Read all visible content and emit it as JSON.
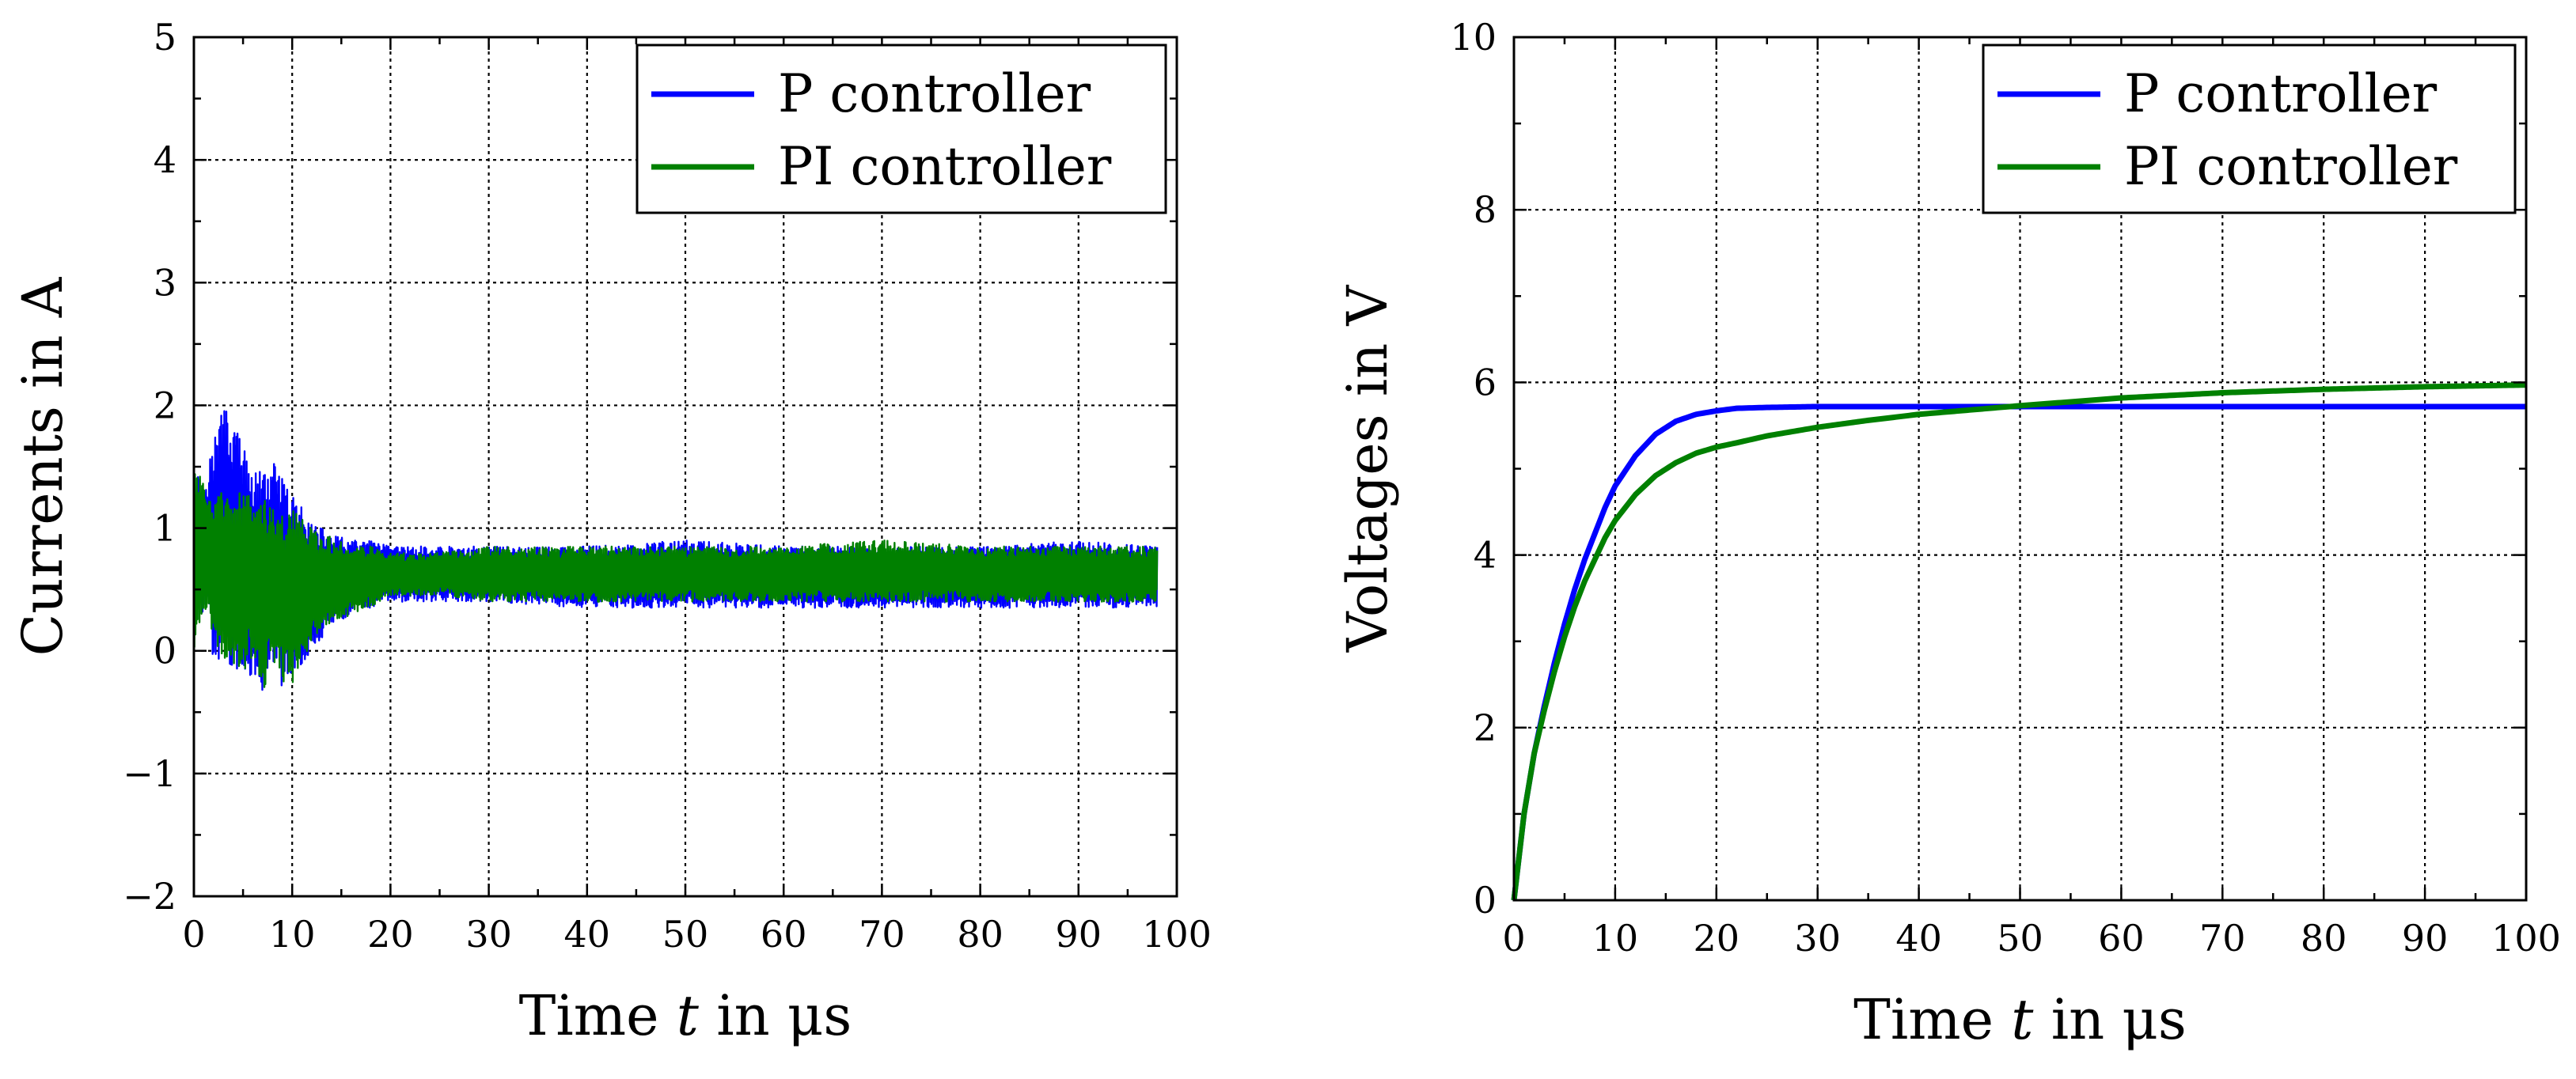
{
  "figure_title": "",
  "colors": {
    "p": "#0000ff",
    "pi": "#008000"
  },
  "chart_data": [
    {
      "type": "line",
      "title": "",
      "xlabel_prefix": "Time ",
      "xlabel_var": "t",
      "xlabel_suffix": " in μs",
      "ylabel": "Currents in A",
      "xlim": [
        0,
        100
      ],
      "ylim": [
        -2,
        5
      ],
      "xticks": [
        "0",
        "10",
        "20",
        "30",
        "40",
        "50",
        "60",
        "70",
        "80",
        "90",
        "100"
      ],
      "yticks": [
        "−2",
        "−1",
        "0",
        "1",
        "2",
        "3",
        "4",
        "5"
      ],
      "grid": true,
      "legend_position": "top-right",
      "series": [
        {
          "name": "P controller",
          "color": "#0000ff",
          "description_points": {
            "t_us": [
              0,
              1,
              2,
              3,
              4,
              5,
              6,
              7,
              8,
              9,
              10,
              12,
              14,
              16,
              18,
              20,
              25,
              30,
              40,
              50,
              60,
              70,
              80,
              90,
              98
            ],
            "upper": [
              1.5,
              1.4,
              1.75,
              2.0,
              1.9,
              1.65,
              1.5,
              1.45,
              1.55,
              1.4,
              1.3,
              1.05,
              0.95,
              0.9,
              0.9,
              0.85,
              0.85,
              0.85,
              0.85,
              0.9,
              0.85,
              0.85,
              0.85,
              0.9,
              0.85
            ],
            "lower": [
              0.0,
              0.3,
              -0.1,
              -0.15,
              -0.2,
              -0.15,
              -0.25,
              -0.35,
              -0.1,
              -0.3,
              -0.2,
              0.0,
              0.2,
              0.3,
              0.35,
              0.4,
              0.4,
              0.4,
              0.35,
              0.35,
              0.35,
              0.35,
              0.35,
              0.35,
              0.35
            ]
          }
        },
        {
          "name": "PI controller",
          "color": "#008000",
          "description_points": {
            "t_us": [
              0,
              1,
              2,
              3,
              4,
              5,
              6,
              7,
              8,
              9,
              10,
              12,
              14,
              16,
              18,
              20,
              25,
              30,
              40,
              50,
              60,
              70,
              80,
              90,
              98
            ],
            "upper": [
              1.5,
              1.4,
              1.25,
              1.3,
              1.2,
              1.35,
              1.2,
              1.25,
              1.15,
              1.1,
              1.15,
              1.0,
              0.95,
              0.85,
              0.85,
              0.8,
              0.8,
              0.85,
              0.85,
              0.85,
              0.85,
              0.9,
              0.85,
              0.85,
              0.85
            ],
            "lower": [
              0.0,
              0.35,
              0.1,
              -0.05,
              -0.1,
              -0.2,
              -0.05,
              -0.35,
              -0.1,
              -0.25,
              -0.3,
              0.05,
              0.2,
              0.3,
              0.35,
              0.45,
              0.45,
              0.4,
              0.4,
              0.4,
              0.4,
              0.4,
              0.4,
              0.4,
              0.4
            ]
          }
        }
      ]
    },
    {
      "type": "line",
      "title": "",
      "xlabel_prefix": "Time ",
      "xlabel_var": "t",
      "xlabel_suffix": " in μs",
      "ylabel": "Voltages in V",
      "xlim": [
        0,
        100
      ],
      "ylim": [
        0,
        10
      ],
      "xticks": [
        "0",
        "10",
        "20",
        "30",
        "40",
        "50",
        "60",
        "70",
        "80",
        "90",
        "100"
      ],
      "yticks": [
        "0",
        "2",
        "4",
        "6",
        "8",
        "10"
      ],
      "grid": true,
      "legend_position": "top-right",
      "series": [
        {
          "name": "P controller",
          "color": "#0000ff",
          "x": [
            0,
            1,
            2,
            3,
            4,
            5,
            6,
            7,
            8,
            9,
            10,
            12,
            14,
            16,
            18,
            20,
            22,
            25,
            30,
            35,
            40,
            50,
            60,
            70,
            80,
            90,
            100
          ],
          "y": [
            0,
            1.0,
            1.7,
            2.25,
            2.75,
            3.2,
            3.6,
            3.95,
            4.25,
            4.55,
            4.8,
            5.15,
            5.4,
            5.55,
            5.63,
            5.67,
            5.7,
            5.71,
            5.72,
            5.72,
            5.72,
            5.72,
            5.72,
            5.72,
            5.72,
            5.72,
            5.72
          ]
        },
        {
          "name": "PI controller",
          "color": "#008000",
          "x": [
            0,
            1,
            2,
            3,
            4,
            5,
            6,
            7,
            8,
            9,
            10,
            12,
            14,
            16,
            18,
            20,
            22,
            25,
            30,
            35,
            40,
            50,
            60,
            70,
            80,
            90,
            100
          ],
          "y": [
            0,
            1.0,
            1.7,
            2.2,
            2.65,
            3.05,
            3.4,
            3.7,
            3.95,
            4.2,
            4.4,
            4.7,
            4.92,
            5.07,
            5.18,
            5.25,
            5.3,
            5.38,
            5.48,
            5.56,
            5.63,
            5.73,
            5.82,
            5.88,
            5.92,
            5.95,
            5.97
          ]
        }
      ]
    }
  ]
}
